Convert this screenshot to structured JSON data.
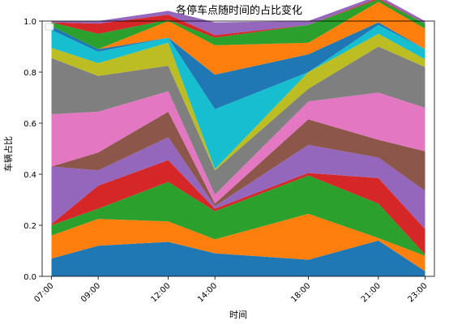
{
  "chart_data": {
    "type": "area",
    "stacked": true,
    "title": "各停车点随时间的占比变化",
    "xlabel": "时间",
    "ylabel": "车辆占比",
    "x": [
      "07:00",
      "09:00",
      "12:00",
      "14:00",
      "18:00",
      "21:00",
      "23:00"
    ],
    "x_hours": [
      7,
      9,
      12,
      14,
      18,
      21,
      23
    ],
    "ylim": [
      0,
      1.0
    ],
    "yticks": [
      "0.0",
      "0.2",
      "0.4",
      "0.6",
      "0.8",
      "1.0"
    ],
    "grid": false,
    "legend": {
      "placement": "top-left",
      "entries": []
    },
    "series": [
      {
        "color": "#1f77b4",
        "values": [
          0.07,
          0.12,
          0.135,
          0.09,
          0.065,
          0.14,
          0.02
        ]
      },
      {
        "color": "#ff7f0e",
        "values": [
          0.09,
          0.105,
          0.08,
          0.055,
          0.18,
          0.01,
          0.06
        ]
      },
      {
        "color": "#2ca02c",
        "values": [
          0.04,
          0.04,
          0.155,
          0.11,
          0.15,
          0.135,
          0.005
        ]
      },
      {
        "color": "#d62728",
        "values": [
          0.005,
          0.09,
          0.085,
          0.01,
          0.01,
          0.1,
          0.1
        ]
      },
      {
        "color": "#9467bd",
        "values": [
          0.225,
          0.06,
          0.09,
          0.01,
          0.11,
          0.08,
          0.15
        ]
      },
      {
        "color": "#8c564b",
        "values": [
          0.0,
          0.07,
          0.1,
          0.01,
          0.1,
          0.07,
          0.155
        ]
      },
      {
        "color": "#e377c2",
        "values": [
          0.205,
          0.16,
          0.08,
          0.035,
          0.07,
          0.185,
          0.17
        ]
      },
      {
        "color": "#7f7f7f",
        "values": [
          0.22,
          0.14,
          0.1,
          0.095,
          0.05,
          0.18,
          0.16
        ]
      },
      {
        "color": "#bcbd22",
        "values": [
          0.04,
          0.05,
          0.09,
          0.005,
          0.065,
          0.05,
          0.03
        ]
      },
      {
        "color": "#17becf",
        "values": [
          0.07,
          0.045,
          0.02,
          0.235,
          0.0,
          0.035,
          0.04
        ]
      },
      {
        "color": "#1f77b4",
        "values": [
          0.015,
          0.01,
          0.0,
          0.135,
          0.07,
          0.01,
          0.0
        ]
      },
      {
        "color": "#ff7f0e",
        "values": [
          0.0,
          0.0,
          0.065,
          0.115,
          0.045,
          0.08,
          0.08
        ]
      },
      {
        "color": "#2ca02c",
        "values": [
          0.015,
          0.06,
          0.005,
          0.03,
          0.07,
          0.01,
          0.02
        ]
      },
      {
        "color": "#d62728",
        "values": [
          0.0,
          0.04,
          0.02,
          0.01,
          0.0,
          0.005,
          0.0
        ]
      },
      {
        "color": "#9467bd",
        "values": [
          0.005,
          0.01,
          0.015,
          0.05,
          0.015,
          0.01,
          0.01
        ]
      }
    ]
  }
}
